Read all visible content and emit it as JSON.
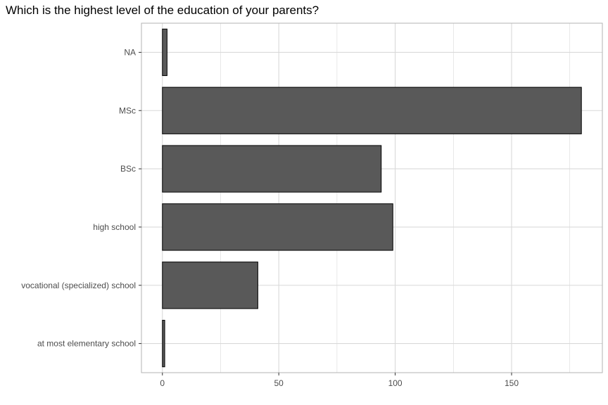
{
  "chart_data": {
    "type": "bar",
    "orientation": "horizontal",
    "title": "Which is the highest level of the education of your parents?",
    "xlabel": "",
    "ylabel": "",
    "categories": [
      "at most elementary school",
      "vocational (specialized) school",
      "high school",
      "BSc",
      "MSc",
      "NA"
    ],
    "values": [
      1,
      41,
      99,
      94,
      180,
      2
    ],
    "xlim": [
      -9,
      189
    ],
    "xticks": [
      0,
      50,
      100,
      150
    ],
    "grid": true,
    "legend": "none",
    "bar_color": "#595959",
    "bar_edge_color": "#000000",
    "grid_color": "#d9d9d9",
    "panel_border_color": "#b3b3b3"
  }
}
